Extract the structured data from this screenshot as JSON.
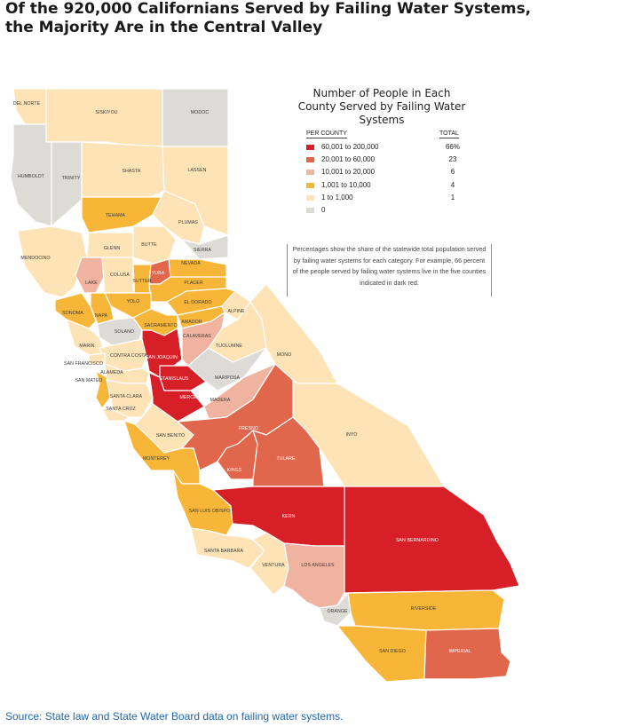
{
  "title": "Of the 920,000 Californians Served by Failing Water Systems, the Majority Are in the Central Valley",
  "legend": {
    "title": "Number of People in Each County Served by Failing Water Systems",
    "per_county_header": "PER COUNTY",
    "total_header": "TOTAL",
    "categories": [
      {
        "range": "60,001 to 200,000",
        "total": "66%",
        "color": "#d61f26"
      },
      {
        "range": "20,001 to 60,000",
        "total": "23",
        "color": "#e0674b"
      },
      {
        "range": "10,001 to 20,000",
        "total": "6",
        "color": "#f0b3a0"
      },
      {
        "range": "1,001 to 10,000",
        "total": "4",
        "color": "#f7b638"
      },
      {
        "range": "1 to 1,000",
        "total": "1",
        "color": "#fde3b6"
      },
      {
        "range": "0",
        "total": "",
        "color": "#dddbd6"
      }
    ]
  },
  "note": "Percentages show the share of the statewide total population served by failing water systems for each category. For example, 66 percent of the people served by failing water systems live in the five counties indicated in dark red.",
  "source": "Source: State law and State Water Board data on failing water systems.",
  "counties": [
    {
      "label": "DEL NORTE",
      "cat": 4
    },
    {
      "label": "SISKIYOU",
      "cat": 4
    },
    {
      "label": "MODOC",
      "cat": 5
    },
    {
      "label": "HUMBOLDT",
      "cat": 5
    },
    {
      "label": "TRINITY",
      "cat": 5
    },
    {
      "label": "SHASTA",
      "cat": 4
    },
    {
      "label": "LASSEN",
      "cat": 4
    },
    {
      "label": "TEHAMA",
      "cat": 3
    },
    {
      "label": "PLUMAS",
      "cat": 4
    },
    {
      "label": "GLENN",
      "cat": 4
    },
    {
      "label": "BUTTE",
      "cat": 4
    },
    {
      "label": "SIERRA",
      "cat": 5
    },
    {
      "label": "MENDOCINO",
      "cat": 4
    },
    {
      "label": "LAKE",
      "cat": 2
    },
    {
      "label": "COLUSA",
      "cat": 4
    },
    {
      "label": "SUTTER",
      "cat": 3
    },
    {
      "label": "YUBA",
      "cat": 1
    },
    {
      "label": "NEVADA",
      "cat": 3
    },
    {
      "label": "PLACER",
      "cat": 3
    },
    {
      "label": "YOLO",
      "cat": 3
    },
    {
      "label": "EL DORADO",
      "cat": 3
    },
    {
      "label": "SONOMA",
      "cat": 3
    },
    {
      "label": "NAPA",
      "cat": 3
    },
    {
      "label": "SACRAMENTO",
      "cat": 3
    },
    {
      "label": "AMADOR",
      "cat": 3
    },
    {
      "label": "ALPINE",
      "cat": 4
    },
    {
      "label": "SOLANO",
      "cat": 5
    },
    {
      "label": "MARIN",
      "cat": 4
    },
    {
      "label": "CONTRA COSTA",
      "cat": 4
    },
    {
      "label": "SAN JOAQUIN",
      "cat": 0
    },
    {
      "label": "CALAVERAS",
      "cat": 2
    },
    {
      "label": "TUOLUMNE",
      "cat": 4
    },
    {
      "label": "MONO",
      "cat": 4
    },
    {
      "label": "SAN FRANCISCO",
      "cat": 4
    },
    {
      "label": "ALAMEDA",
      "cat": 4
    },
    {
      "label": "STANISLAUS",
      "cat": 0
    },
    {
      "label": "MARIPOSA",
      "cat": 5
    },
    {
      "label": "SAN MATEO",
      "cat": 3
    },
    {
      "label": "SANTA CLARA",
      "cat": 4
    },
    {
      "label": "SANTA CRUZ",
      "cat": 4
    },
    {
      "label": "MERCED",
      "cat": 0
    },
    {
      "label": "MADERA",
      "cat": 2
    },
    {
      "label": "SAN BENITO",
      "cat": 4
    },
    {
      "label": "FRESNO",
      "cat": 1
    },
    {
      "label": "INYO",
      "cat": 4
    },
    {
      "label": "MONTEREY",
      "cat": 3
    },
    {
      "label": "KINGS",
      "cat": 1
    },
    {
      "label": "TULARE",
      "cat": 1
    },
    {
      "label": "SAN LUIS OBISPO",
      "cat": 3
    },
    {
      "label": "KERN",
      "cat": 0
    },
    {
      "label": "SAN BERNARDINO",
      "cat": 0
    },
    {
      "label": "SANTA BARBARA",
      "cat": 4
    },
    {
      "label": "VENTURA",
      "cat": 4
    },
    {
      "label": "LOS ANGELES",
      "cat": 2
    },
    {
      "label": "ORANGE",
      "cat": 5
    },
    {
      "label": "RIVERSIDE",
      "cat": 3
    },
    {
      "label": "SAN DIEGO",
      "cat": 3
    },
    {
      "label": "IMPERIAL",
      "cat": 1
    }
  ]
}
